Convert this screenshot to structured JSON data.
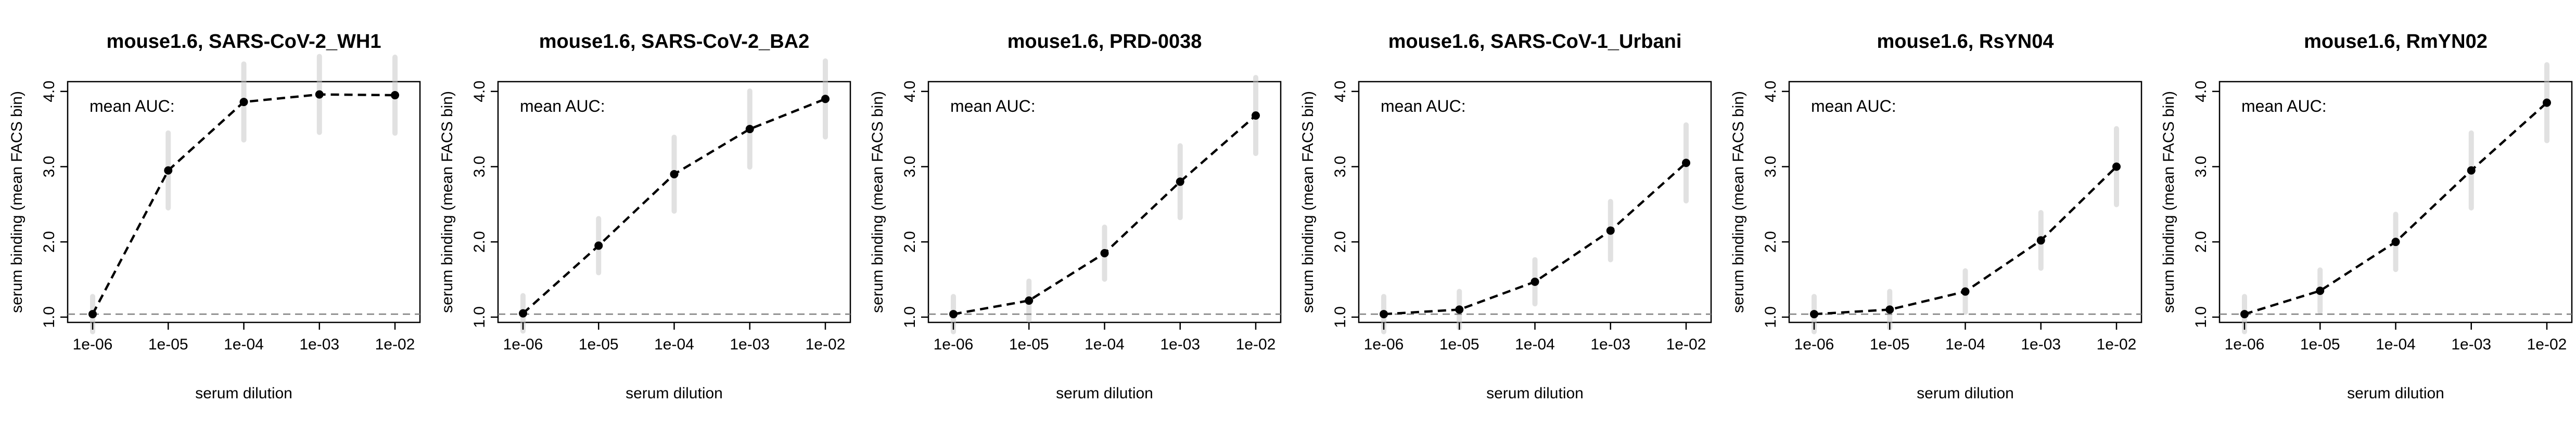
{
  "chart_data": [
    {
      "type": "line",
      "title": "mouse1.6, SARS-CoV-2_WH1",
      "annotation": "mean AUC:",
      "xlabel": "serum dilution",
      "ylabel": "serum binding (mean FACS bin)",
      "x_scale": "log",
      "x": [
        1e-06,
        1e-05,
        0.0001,
        0.001,
        0.01
      ],
      "x_tick_labels": [
        "1e-06",
        "1e-05",
        "1e-04",
        "1e-03",
        "1e-02"
      ],
      "y_ticks": [
        1.0,
        2.0,
        3.0,
        4.0
      ],
      "y_tick_labels": [
        "1.0",
        "2.0",
        "3.0",
        "4.0"
      ],
      "ylim": [
        0.93,
        4.13
      ],
      "baseline": 1.04,
      "series": [
        {
          "values": [
            1.04,
            2.95,
            3.86,
            3.96,
            3.95
          ]
        }
      ],
      "grid": false,
      "colors": {
        "line": "#000000",
        "baseline": "#808080",
        "points": "#000000",
        "spread": "#c8c8c8"
      }
    },
    {
      "type": "line",
      "title": "mouse1.6, SARS-CoV-2_BA2",
      "annotation": "mean AUC:",
      "xlabel": "serum dilution",
      "ylabel": "serum binding (mean FACS bin)",
      "x_scale": "log",
      "x": [
        1e-06,
        1e-05,
        0.0001,
        0.001,
        0.01
      ],
      "x_tick_labels": [
        "1e-06",
        "1e-05",
        "1e-04",
        "1e-03",
        "1e-02"
      ],
      "y_ticks": [
        1.0,
        2.0,
        3.0,
        4.0
      ],
      "y_tick_labels": [
        "1.0",
        "2.0",
        "3.0",
        "4.0"
      ],
      "ylim": [
        0.93,
        4.13
      ],
      "baseline": 1.04,
      "series": [
        {
          "values": [
            1.05,
            1.95,
            2.9,
            3.5,
            3.9
          ]
        }
      ],
      "grid": false,
      "colors": {
        "line": "#000000",
        "baseline": "#808080",
        "points": "#000000",
        "spread": "#c8c8c8"
      }
    },
    {
      "type": "line",
      "title": "mouse1.6, PRD-0038",
      "annotation": "mean AUC:",
      "xlabel": "serum dilution",
      "ylabel": "serum binding (mean FACS bin)",
      "x_scale": "log",
      "x": [
        1e-06,
        1e-05,
        0.0001,
        0.001,
        0.01
      ],
      "x_tick_labels": [
        "1e-06",
        "1e-05",
        "1e-04",
        "1e-03",
        "1e-02"
      ],
      "y_ticks": [
        1.0,
        2.0,
        3.0,
        4.0
      ],
      "y_tick_labels": [
        "1.0",
        "2.0",
        "3.0",
        "4.0"
      ],
      "ylim": [
        0.93,
        4.13
      ],
      "baseline": 1.04,
      "series": [
        {
          "values": [
            1.04,
            1.22,
            1.85,
            2.8,
            3.68
          ]
        }
      ],
      "grid": false,
      "colors": {
        "line": "#000000",
        "baseline": "#808080",
        "points": "#000000",
        "spread": "#c8c8c8"
      }
    },
    {
      "type": "line",
      "title": "mouse1.6, SARS-CoV-1_Urbani",
      "annotation": "mean AUC:",
      "xlabel": "serum dilution",
      "ylabel": "serum binding (mean FACS bin)",
      "x_scale": "log",
      "x": [
        1e-06,
        1e-05,
        0.0001,
        0.001,
        0.01
      ],
      "x_tick_labels": [
        "1e-06",
        "1e-05",
        "1e-04",
        "1e-03",
        "1e-02"
      ],
      "y_ticks": [
        1.0,
        2.0,
        3.0,
        4.0
      ],
      "y_tick_labels": [
        "1.0",
        "2.0",
        "3.0",
        "4.0"
      ],
      "ylim": [
        0.93,
        4.13
      ],
      "baseline": 1.04,
      "series": [
        {
          "values": [
            1.04,
            1.1,
            1.47,
            2.15,
            3.05
          ]
        }
      ],
      "grid": false,
      "colors": {
        "line": "#000000",
        "baseline": "#808080",
        "points": "#000000",
        "spread": "#c8c8c8"
      }
    },
    {
      "type": "line",
      "title": "mouse1.6, RsYN04",
      "annotation": "mean AUC:",
      "xlabel": "serum dilution",
      "ylabel": "serum binding (mean FACS bin)",
      "x_scale": "log",
      "x": [
        1e-06,
        1e-05,
        0.0001,
        0.001,
        0.01
      ],
      "x_tick_labels": [
        "1e-06",
        "1e-05",
        "1e-04",
        "1e-03",
        "1e-02"
      ],
      "y_ticks": [
        1.0,
        2.0,
        3.0,
        4.0
      ],
      "y_tick_labels": [
        "1.0",
        "2.0",
        "3.0",
        "4.0"
      ],
      "ylim": [
        0.93,
        4.13
      ],
      "baseline": 1.04,
      "series": [
        {
          "values": [
            1.04,
            1.1,
            1.34,
            2.02,
            3.0
          ]
        }
      ],
      "grid": false,
      "colors": {
        "line": "#000000",
        "baseline": "#808080",
        "points": "#000000",
        "spread": "#c8c8c8"
      }
    },
    {
      "type": "line",
      "title": "mouse1.6, RmYN02",
      "annotation": "mean AUC:",
      "xlabel": "serum dilution",
      "ylabel": "serum binding (mean FACS bin)",
      "x_scale": "log",
      "x": [
        1e-06,
        1e-05,
        0.0001,
        0.001,
        0.01
      ],
      "x_tick_labels": [
        "1e-06",
        "1e-05",
        "1e-04",
        "1e-03",
        "1e-02"
      ],
      "y_ticks": [
        1.0,
        2.0,
        3.0,
        4.0
      ],
      "y_tick_labels": [
        "1.0",
        "2.0",
        "3.0",
        "4.0"
      ],
      "ylim": [
        0.93,
        4.13
      ],
      "baseline": 1.04,
      "series": [
        {
          "values": [
            1.04,
            1.35,
            2.0,
            2.95,
            3.85
          ]
        }
      ],
      "grid": false,
      "colors": {
        "line": "#000000",
        "baseline": "#808080",
        "points": "#000000",
        "spread": "#c8c8c8"
      }
    }
  ]
}
